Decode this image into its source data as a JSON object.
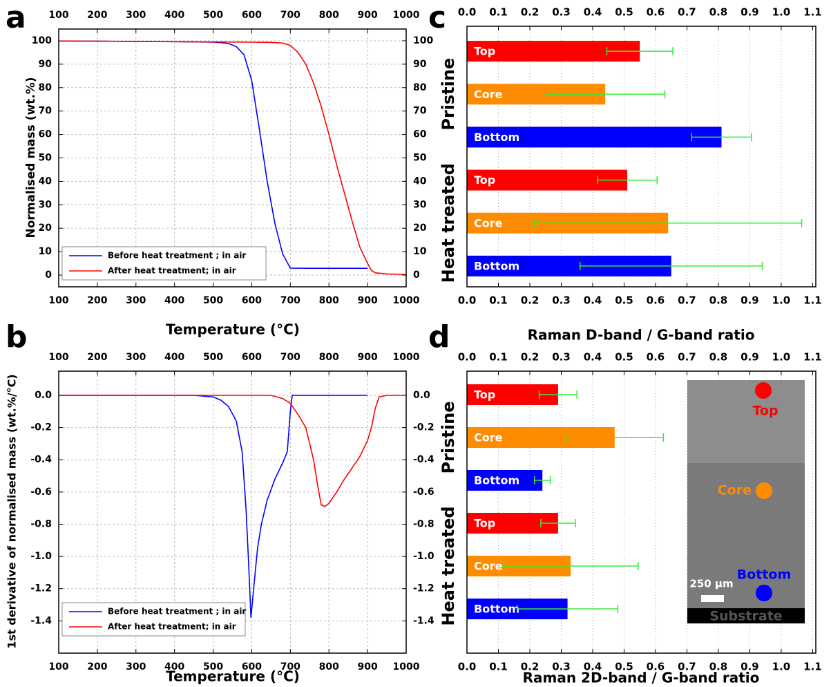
{
  "chart_data": [
    {
      "type": "line",
      "panel_label": "a",
      "xlabel": "Temperature (°C)",
      "ylabel": "Normalised mass (wt.%)",
      "xlim": [
        100,
        1000
      ],
      "xticks": [
        100,
        200,
        300,
        400,
        500,
        600,
        700,
        800,
        900,
        1000
      ],
      "ylim": [
        -5,
        105
      ],
      "yticks": [
        0,
        10,
        20,
        30,
        40,
        50,
        60,
        70,
        80,
        90,
        100
      ],
      "grid": true,
      "legend": "lower left",
      "series": [
        {
          "name": "Before heat treatment ; in air",
          "color": "#0000ff",
          "x": [
            100,
            200,
            300,
            400,
            500,
            520,
            540,
            560,
            580,
            600,
            620,
            640,
            660,
            680,
            700,
            750,
            800,
            850,
            900
          ],
          "values": [
            99.9,
            99.8,
            99.7,
            99.6,
            99.4,
            99.2,
            98.8,
            97.5,
            94,
            83,
            62,
            40,
            22,
            9,
            3,
            2.9,
            2.9,
            2.9,
            2.9
          ]
        },
        {
          "name": "After heat treatment; in air",
          "color": "#ff0000",
          "x": [
            100,
            200,
            300,
            400,
            500,
            600,
            650,
            680,
            700,
            720,
            740,
            760,
            780,
            800,
            820,
            840,
            860,
            880,
            900,
            910,
            920,
            950,
            1000
          ],
          "values": [
            99.9,
            99.8,
            99.7,
            99.6,
            99.5,
            99.4,
            99.3,
            99,
            98,
            95,
            90,
            82,
            72,
            60,
            47,
            35,
            23,
            12,
            5,
            2,
            1,
            0.5,
            0.3
          ]
        }
      ]
    },
    {
      "type": "line",
      "panel_label": "b",
      "xlabel": "Temperature (°C)",
      "ylabel": "1st derivative of normalised mass (wt.%/°C)",
      "xlim": [
        100,
        1000
      ],
      "xticks": [
        100,
        200,
        300,
        400,
        500,
        600,
        700,
        800,
        900,
        1000
      ],
      "ylim": [
        -1.6,
        0.15
      ],
      "yticks": [
        {
          "value": 0,
          "label": "0.0"
        },
        -0.2,
        -0.4,
        -0.6,
        -0.8,
        {
          "value": -1,
          "label": "-1.0"
        },
        -1.2,
        -1.4
      ],
      "grid": true,
      "legend": "lower left",
      "series": [
        {
          "name": "Before heat treatment ; in air",
          "color": "#0000ff",
          "x": [
            100,
            200,
            300,
            400,
            450,
            500,
            520,
            540,
            560,
            575,
            585,
            592,
            598,
            605,
            615,
            625,
            640,
            660,
            680,
            692,
            700,
            705,
            720,
            800,
            900
          ],
          "values": [
            0,
            0,
            0,
            0,
            0,
            -0.01,
            -0.03,
            -0.07,
            -0.16,
            -0.35,
            -0.7,
            -1.05,
            -1.38,
            -1.2,
            -0.95,
            -0.8,
            -0.65,
            -0.52,
            -0.42,
            -0.35,
            -0.1,
            0,
            0,
            0,
            0
          ]
        },
        {
          "name": "After heat treatment; in air",
          "color": "#ff0000",
          "x": [
            100,
            300,
            500,
            650,
            680,
            700,
            720,
            740,
            760,
            770,
            780,
            790,
            800,
            820,
            840,
            860,
            880,
            900,
            910,
            920,
            930,
            950,
            1000
          ],
          "values": [
            0,
            0,
            0,
            0,
            -0.02,
            -0.05,
            -0.12,
            -0.2,
            -0.4,
            -0.55,
            -0.68,
            -0.69,
            -0.67,
            -0.6,
            -0.52,
            -0.45,
            -0.38,
            -0.28,
            -0.2,
            -0.08,
            -0.01,
            0,
            0
          ]
        }
      ]
    },
    {
      "type": "bar",
      "orientation": "horizontal",
      "panel_label": "c",
      "xlabel": "Raman D-band / G-band ratio",
      "group_labels": [
        "Pristine",
        "Heat treated"
      ],
      "categories": [
        "Top",
        "Core",
        "Bottom",
        "Top",
        "Core",
        "Bottom"
      ],
      "values": [
        0.55,
        0.44,
        0.81,
        0.51,
        0.64,
        0.65
      ],
      "errors": [
        0.105,
        0.19,
        0.095,
        0.095,
        0.425,
        0.29
      ],
      "colors": [
        "#ff0000",
        "#ff8c00",
        "#0000ff",
        "#ff0000",
        "#ff8c00",
        "#0000ff"
      ],
      "error_color": "#33ee33",
      "xlim": [
        0,
        1.11
      ],
      "xticks": [
        {
          "value": 0,
          "label": "0.0"
        },
        0.1,
        0.2,
        0.3,
        0.4,
        0.5,
        0.6,
        0.7,
        0.8,
        0.9,
        {
          "value": 1,
          "label": "1.0"
        },
        1.1
      ],
      "grid": true
    },
    {
      "type": "bar",
      "orientation": "horizontal",
      "panel_label": "d",
      "xlabel": "Raman 2D-band / G-band ratio",
      "group_labels": [
        "Pristine",
        "Heat treated"
      ],
      "categories": [
        "Top",
        "Core",
        "Bottom",
        "Top",
        "Core",
        "Bottom"
      ],
      "values": [
        0.29,
        0.47,
        0.24,
        0.29,
        0.33,
        0.32
      ],
      "errors": [
        0.06,
        0.155,
        0.025,
        0.055,
        0.215,
        0.16
      ],
      "colors": [
        "#ff0000",
        "#ff8c00",
        "#0000ff",
        "#ff0000",
        "#ff8c00",
        "#0000ff"
      ],
      "error_color": "#33ee33",
      "xlim": [
        0,
        1.11
      ],
      "xticks": [
        {
          "value": 0,
          "label": "0.0"
        },
        0.1,
        0.2,
        0.3,
        0.4,
        0.5,
        0.6,
        0.7,
        0.8,
        0.9,
        {
          "value": 1,
          "label": "1.0"
        },
        1.1
      ],
      "grid": true,
      "inset": {
        "top": "Top",
        "core": "Core",
        "bottom": "Bottom",
        "scale": "250 µm",
        "substrate": "Substrate"
      }
    }
  ]
}
